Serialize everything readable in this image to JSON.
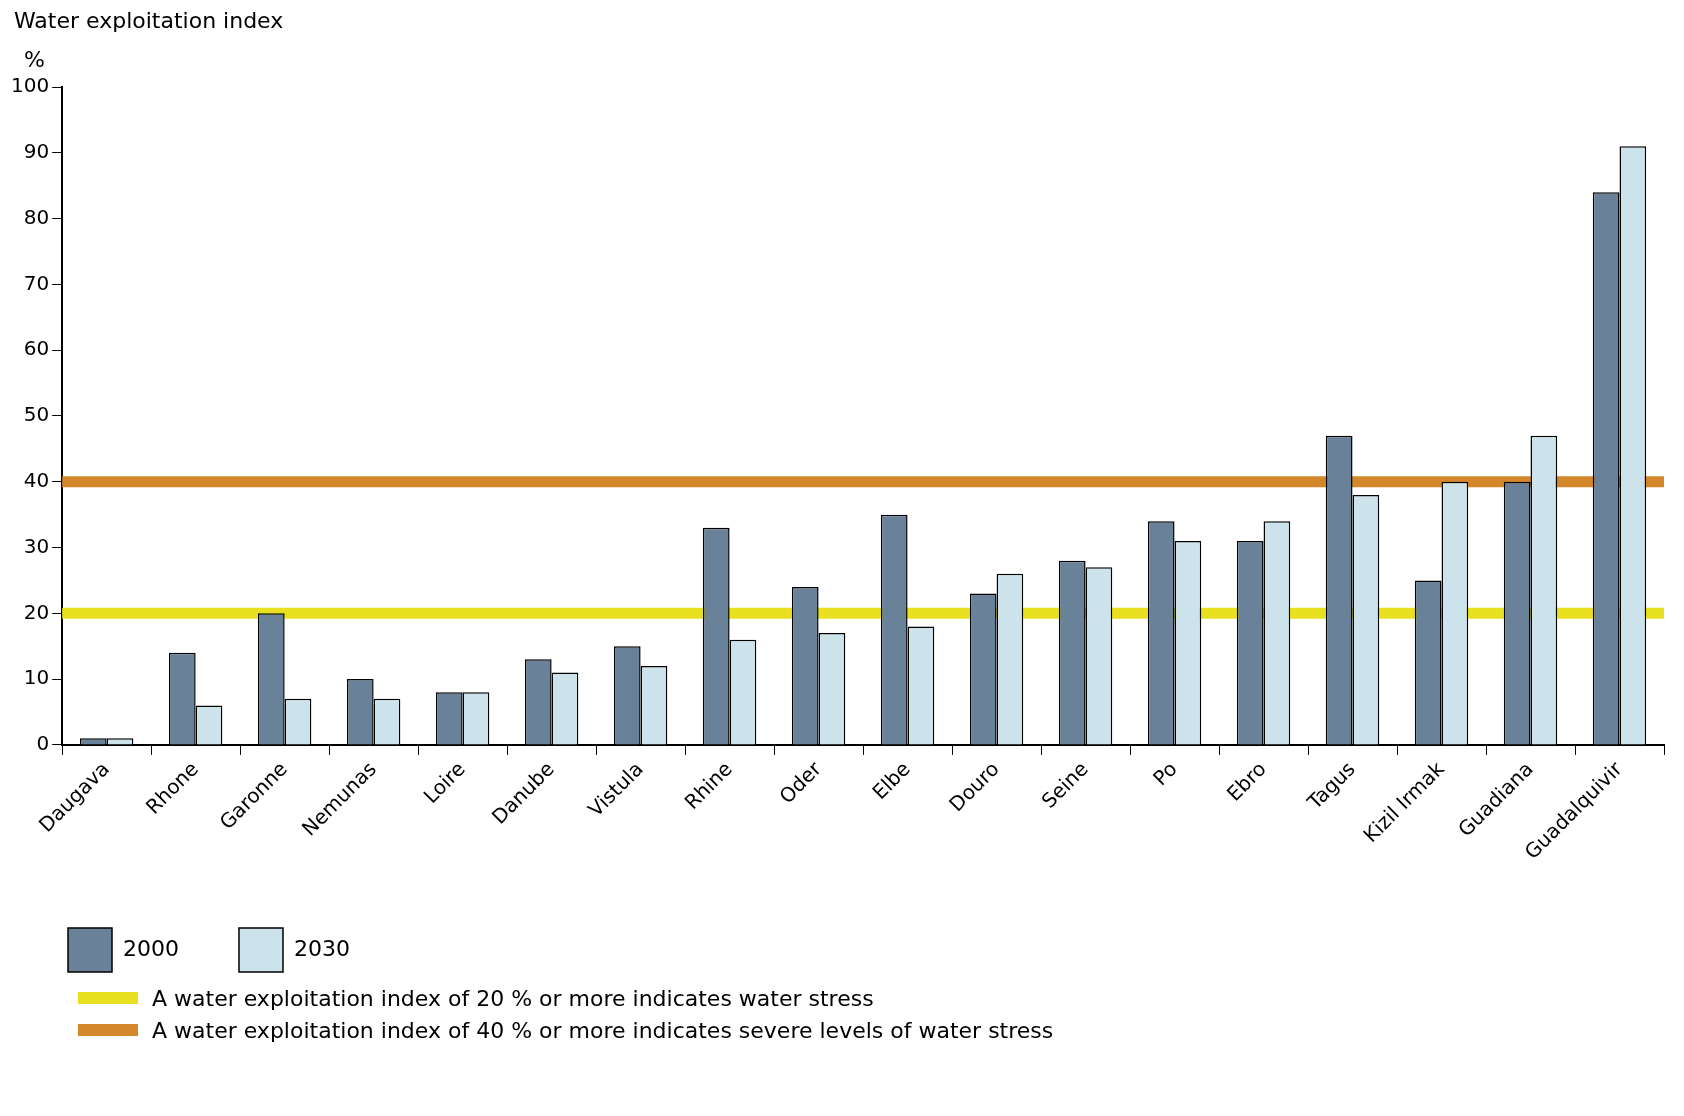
{
  "chart_data": {
    "type": "bar",
    "title": "Water exploitation index",
    "ylabel": "%",
    "categories": [
      "Daugava",
      "Rhone",
      "Garonne",
      "Nemunas",
      "Loire",
      "Danube",
      "Vistula",
      "Rhine",
      "Oder",
      "Elbe",
      "Douro",
      "Seine",
      "Po",
      "Ebro",
      "Tagus",
      "Kizil Irmak",
      "Guadiana",
      "Guadalquivir"
    ],
    "series": [
      {
        "name": "2000",
        "color": "#6a8299",
        "values": [
          1,
          14,
          20,
          10,
          8,
          13,
          15,
          33,
          24,
          35,
          23,
          28,
          34,
          31,
          47,
          25,
          40,
          84
        ]
      },
      {
        "name": "2030",
        "color": "#cde3ec",
        "values": [
          1,
          6,
          7,
          7,
          8,
          11,
          12,
          16,
          17,
          18,
          26,
          27,
          31,
          34,
          38,
          40,
          47,
          91
        ]
      }
    ],
    "ylim": [
      0,
      100
    ],
    "yticks": [
      0,
      10,
      20,
      30,
      40,
      50,
      60,
      70,
      80,
      90,
      100
    ],
    "grid": false,
    "legend": "bottom left",
    "ref_lines": [
      {
        "axis": "y",
        "value": 20,
        "label": "A water exploitation index of 20 % or more indicates water stress",
        "color": "#e8e020"
      },
      {
        "axis": "y",
        "value": 40,
        "label": "A water exploitation index of 40 % or more indicates severe levels of water stress",
        "color": "#d4862a"
      }
    ]
  }
}
